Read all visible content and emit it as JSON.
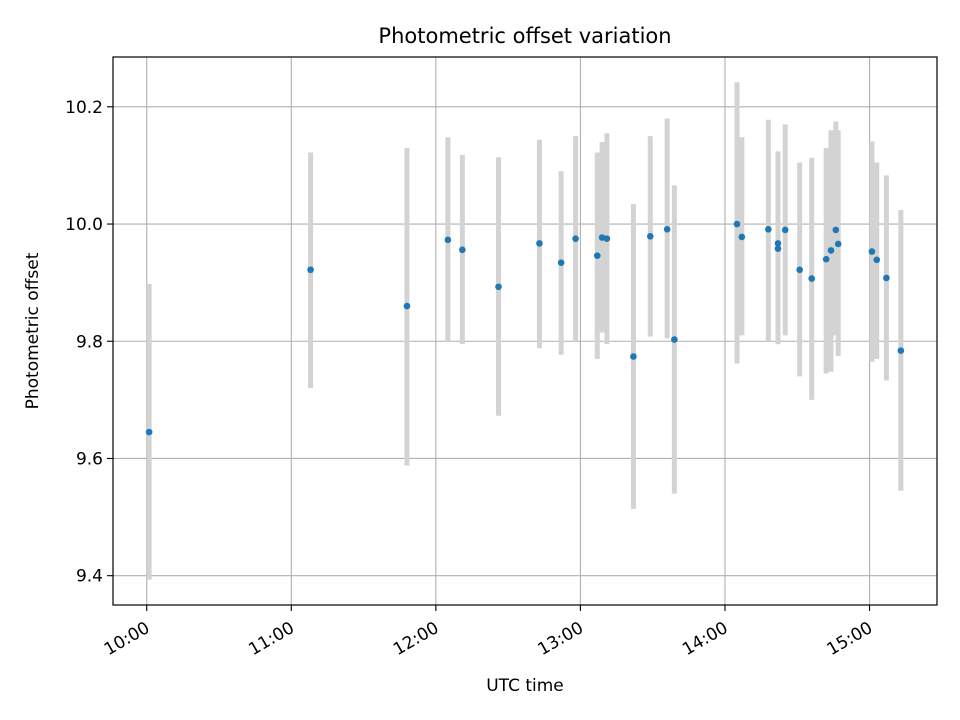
{
  "chart_data": {
    "type": "scatter",
    "title": "Photometric offset variation",
    "xlabel": "UTC time",
    "ylabel": "Photometric offset",
    "x_tick_labels": [
      "10:00",
      "11:00",
      "12:00",
      "13:00",
      "14:00",
      "15:00"
    ],
    "y_tick_labels": [
      "9.4",
      "9.6",
      "9.8",
      "10.0",
      "10.2"
    ],
    "y_ticks": [
      9.4,
      9.6,
      9.8,
      10.0,
      10.2
    ],
    "xlim": [
      "09:46",
      "15:28"
    ],
    "ylim": [
      9.35,
      10.285
    ],
    "grid": true,
    "error_bars": true,
    "colors": {
      "points": "#1f77b4",
      "error_bars": "#d3d3d3",
      "grid": "#b0b0b0"
    },
    "points": [
      {
        "x": "10:01",
        "y": 9.645,
        "yerr_low": 9.393,
        "yerr_high": 9.898
      },
      {
        "x": "11:08",
        "y": 9.922,
        "yerr_low": 9.72,
        "yerr_high": 10.122
      },
      {
        "x": "11:48",
        "y": 9.86,
        "yerr_low": 9.588,
        "yerr_high": 10.13
      },
      {
        "x": "12:05",
        "y": 9.973,
        "yerr_low": 9.8,
        "yerr_high": 10.148
      },
      {
        "x": "12:11",
        "y": 9.956,
        "yerr_low": 9.795,
        "yerr_high": 10.118
      },
      {
        "x": "12:26",
        "y": 9.893,
        "yerr_low": 9.673,
        "yerr_high": 10.114
      },
      {
        "x": "12:43",
        "y": 9.967,
        "yerr_low": 9.788,
        "yerr_high": 10.144
      },
      {
        "x": "12:52",
        "y": 9.934,
        "yerr_low": 9.777,
        "yerr_high": 10.09
      },
      {
        "x": "12:58",
        "y": 9.975,
        "yerr_low": 9.8,
        "yerr_high": 10.15
      },
      {
        "x": "13:07",
        "y": 9.946,
        "yerr_low": 9.77,
        "yerr_high": 10.122
      },
      {
        "x": "13:09",
        "y": 9.977,
        "yerr_low": 9.815,
        "yerr_high": 10.14
      },
      {
        "x": "13:11",
        "y": 9.975,
        "yerr_low": 9.795,
        "yerr_high": 10.155
      },
      {
        "x": "13:22",
        "y": 9.774,
        "yerr_low": 9.514,
        "yerr_high": 10.034
      },
      {
        "x": "13:29",
        "y": 9.979,
        "yerr_low": 9.808,
        "yerr_high": 10.15
      },
      {
        "x": "13:36",
        "y": 9.991,
        "yerr_low": 9.805,
        "yerr_high": 10.18
      },
      {
        "x": "13:39",
        "y": 9.803,
        "yerr_low": 9.54,
        "yerr_high": 10.066
      },
      {
        "x": "14:05",
        "y": 10.0,
        "yerr_low": 9.762,
        "yerr_high": 10.242
      },
      {
        "x": "14:07",
        "y": 9.978,
        "yerr_low": 9.81,
        "yerr_high": 10.148
      },
      {
        "x": "14:18",
        "y": 9.991,
        "yerr_low": 9.8,
        "yerr_high": 10.178
      },
      {
        "x": "14:22",
        "y": 9.958,
        "yerr_low": 9.795,
        "yerr_high": 10.124
      },
      {
        "x": "14:22",
        "y": 9.967,
        "yerr_low": 9.795,
        "yerr_high": 10.124
      },
      {
        "x": "14:25",
        "y": 9.99,
        "yerr_low": 9.81,
        "yerr_high": 10.17
      },
      {
        "x": "14:31",
        "y": 9.922,
        "yerr_low": 9.74,
        "yerr_high": 10.105
      },
      {
        "x": "14:36",
        "y": 9.907,
        "yerr_low": 9.7,
        "yerr_high": 10.113
      },
      {
        "x": "14:42",
        "y": 9.94,
        "yerr_low": 9.745,
        "yerr_high": 10.13
      },
      {
        "x": "14:44",
        "y": 9.955,
        "yerr_low": 9.748,
        "yerr_high": 10.16
      },
      {
        "x": "14:46",
        "y": 9.99,
        "yerr_low": 9.81,
        "yerr_high": 10.175
      },
      {
        "x": "14:47",
        "y": 9.966,
        "yerr_low": 9.775,
        "yerr_high": 10.16
      },
      {
        "x": "15:01",
        "y": 9.953,
        "yerr_low": 9.765,
        "yerr_high": 10.141
      },
      {
        "x": "15:03",
        "y": 9.939,
        "yerr_low": 9.77,
        "yerr_high": 10.105
      },
      {
        "x": "15:07",
        "y": 9.908,
        "yerr_low": 9.733,
        "yerr_high": 10.083
      },
      {
        "x": "15:13",
        "y": 9.784,
        "yerr_low": 9.545,
        "yerr_high": 10.024
      }
    ]
  }
}
